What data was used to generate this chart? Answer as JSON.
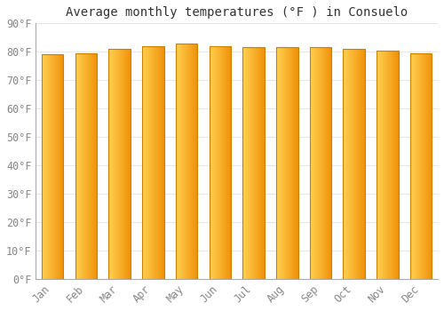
{
  "title": "Average monthly temperatures (°F ) in Consuelo",
  "months": [
    "Jan",
    "Feb",
    "Mar",
    "Apr",
    "May",
    "Jun",
    "Jul",
    "Aug",
    "Sep",
    "Oct",
    "Nov",
    "Dec"
  ],
  "values": [
    79.0,
    79.5,
    81.0,
    82.0,
    83.0,
    82.0,
    81.5,
    81.5,
    81.5,
    81.0,
    80.5,
    79.5
  ],
  "ylim": [
    0,
    90
  ],
  "yticks": [
    0,
    10,
    20,
    30,
    40,
    50,
    60,
    70,
    80,
    90
  ],
  "ytick_labels": [
    "0°F",
    "10°F",
    "20°F",
    "30°F",
    "40°F",
    "50°F",
    "60°F",
    "70°F",
    "80°F",
    "90°F"
  ],
  "bar_color_left": "#FFD050",
  "bar_color_right": "#F0920A",
  "bar_color_edge": "#CC8000",
  "background_color": "#FFFFFF",
  "plot_bg_color": "#FFFFFF",
  "grid_color": "#E8E8E8",
  "title_fontsize": 10,
  "tick_fontsize": 8.5,
  "bar_width": 0.65,
  "n_gradient_steps": 40
}
